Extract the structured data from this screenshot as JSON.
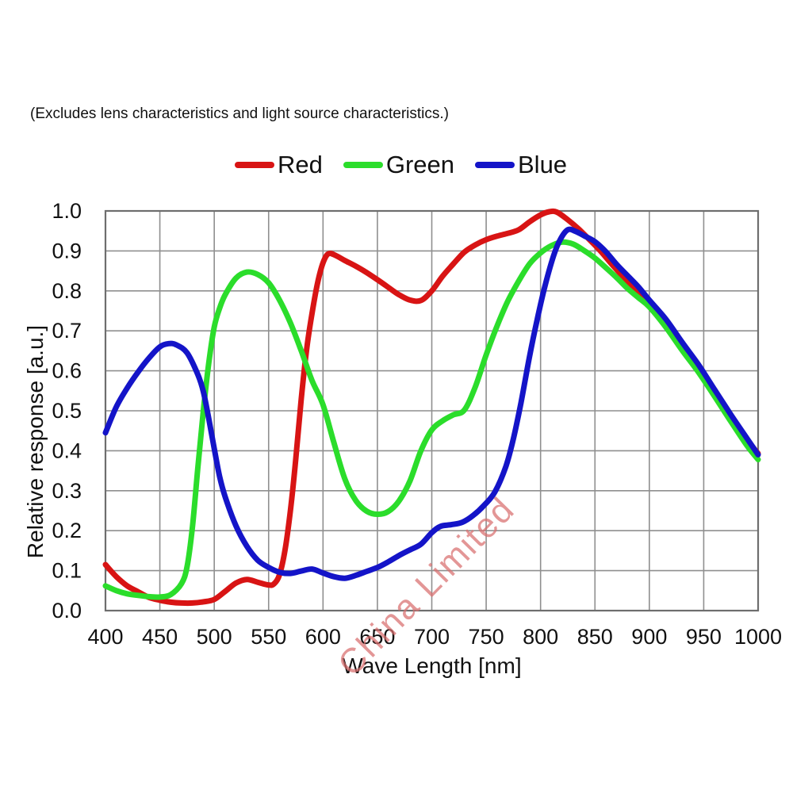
{
  "note": {
    "text": "(Excludes lens characteristics and light source characteristics.)"
  },
  "watermark": {
    "text": "China Limited",
    "color": "#d96e6e"
  },
  "style": {
    "grid_color": "#8f8f8f",
    "border_color": "#6e6e6e",
    "tick_color": "#111111"
  },
  "chart_data": {
    "type": "line",
    "title": "",
    "xlabel": "Wave Length [nm]",
    "ylabel": "Relative response [a.u.]",
    "xlim": [
      400,
      1000
    ],
    "ylim": [
      0.0,
      1.0
    ],
    "grid": true,
    "legend_position": "top-center",
    "x_ticks": [
      "400",
      "450",
      "500",
      "550",
      "600",
      "650",
      "700",
      "750",
      "800",
      "850",
      "900",
      "950",
      "1000"
    ],
    "y_ticks": [
      "0.0",
      "0.1",
      "0.2",
      "0.3",
      "0.4",
      "0.5",
      "0.6",
      "0.7",
      "0.8",
      "0.9",
      "1.0"
    ],
    "series": [
      {
        "name": "Red",
        "color": "#d81414",
        "points": [
          [
            400,
            0.115
          ],
          [
            410,
            0.085
          ],
          [
            420,
            0.062
          ],
          [
            430,
            0.047
          ],
          [
            440,
            0.033
          ],
          [
            450,
            0.026
          ],
          [
            460,
            0.021
          ],
          [
            470,
            0.019
          ],
          [
            480,
            0.019
          ],
          [
            490,
            0.022
          ],
          [
            500,
            0.028
          ],
          [
            510,
            0.048
          ],
          [
            520,
            0.069
          ],
          [
            530,
            0.078
          ],
          [
            540,
            0.071
          ],
          [
            550,
            0.064
          ],
          [
            555,
            0.067
          ],
          [
            560,
            0.09
          ],
          [
            565,
            0.15
          ],
          [
            570,
            0.25
          ],
          [
            575,
            0.38
          ],
          [
            580,
            0.53
          ],
          [
            585,
            0.655
          ],
          [
            590,
            0.745
          ],
          [
            595,
            0.82
          ],
          [
            600,
            0.87
          ],
          [
            605,
            0.893
          ],
          [
            612,
            0.888
          ],
          [
            620,
            0.876
          ],
          [
            630,
            0.862
          ],
          [
            640,
            0.846
          ],
          [
            650,
            0.828
          ],
          [
            660,
            0.809
          ],
          [
            670,
            0.79
          ],
          [
            680,
            0.777
          ],
          [
            690,
            0.776
          ],
          [
            700,
            0.8
          ],
          [
            710,
            0.837
          ],
          [
            720,
            0.868
          ],
          [
            730,
            0.897
          ],
          [
            740,
            0.915
          ],
          [
            750,
            0.928
          ],
          [
            760,
            0.937
          ],
          [
            770,
            0.944
          ],
          [
            780,
            0.953
          ],
          [
            790,
            0.973
          ],
          [
            800,
            0.99
          ],
          [
            808,
            0.998
          ],
          [
            815,
            0.997
          ],
          [
            825,
            0.978
          ],
          [
            835,
            0.955
          ],
          [
            845,
            0.928
          ],
          [
            855,
            0.9
          ],
          [
            865,
            0.868
          ],
          [
            875,
            0.838
          ],
          [
            885,
            0.808
          ],
          [
            900,
            0.773
          ],
          [
            915,
            0.728
          ],
          [
            930,
            0.669
          ],
          [
            945,
            0.613
          ],
          [
            960,
            0.55
          ],
          [
            975,
            0.487
          ],
          [
            990,
            0.427
          ],
          [
            1000,
            0.393
          ]
        ]
      },
      {
        "name": "Green",
        "color": "#2bdd2b",
        "points": [
          [
            400,
            0.062
          ],
          [
            410,
            0.05
          ],
          [
            420,
            0.042
          ],
          [
            430,
            0.038
          ],
          [
            440,
            0.035
          ],
          [
            450,
            0.034
          ],
          [
            460,
            0.04
          ],
          [
            470,
            0.068
          ],
          [
            475,
            0.11
          ],
          [
            480,
            0.21
          ],
          [
            485,
            0.36
          ],
          [
            490,
            0.5
          ],
          [
            495,
            0.62
          ],
          [
            500,
            0.71
          ],
          [
            505,
            0.757
          ],
          [
            510,
            0.79
          ],
          [
            520,
            0.832
          ],
          [
            530,
            0.847
          ],
          [
            540,
            0.841
          ],
          [
            550,
            0.82
          ],
          [
            560,
            0.777
          ],
          [
            570,
            0.72
          ],
          [
            580,
            0.65
          ],
          [
            590,
            0.575
          ],
          [
            600,
            0.515
          ],
          [
            610,
            0.42
          ],
          [
            620,
            0.33
          ],
          [
            630,
            0.276
          ],
          [
            640,
            0.249
          ],
          [
            650,
            0.241
          ],
          [
            660,
            0.248
          ],
          [
            670,
            0.275
          ],
          [
            680,
            0.325
          ],
          [
            690,
            0.4
          ],
          [
            700,
            0.452
          ],
          [
            710,
            0.475
          ],
          [
            720,
            0.49
          ],
          [
            730,
            0.502
          ],
          [
            740,
            0.56
          ],
          [
            750,
            0.64
          ],
          [
            760,
            0.712
          ],
          [
            770,
            0.775
          ],
          [
            780,
            0.825
          ],
          [
            790,
            0.868
          ],
          [
            800,
            0.895
          ],
          [
            810,
            0.913
          ],
          [
            820,
            0.922
          ],
          [
            830,
            0.917
          ],
          [
            840,
            0.901
          ],
          [
            850,
            0.882
          ],
          [
            860,
            0.858
          ],
          [
            870,
            0.833
          ],
          [
            880,
            0.806
          ],
          [
            890,
            0.783
          ],
          [
            900,
            0.76
          ],
          [
            915,
            0.71
          ],
          [
            930,
            0.652
          ],
          [
            945,
            0.597
          ],
          [
            960,
            0.536
          ],
          [
            975,
            0.473
          ],
          [
            990,
            0.412
          ],
          [
            1000,
            0.378
          ]
        ]
      },
      {
        "name": "Blue",
        "color": "#1414c8",
        "points": [
          [
            400,
            0.445
          ],
          [
            410,
            0.51
          ],
          [
            420,
            0.557
          ],
          [
            430,
            0.597
          ],
          [
            440,
            0.632
          ],
          [
            450,
            0.66
          ],
          [
            458,
            0.668
          ],
          [
            465,
            0.665
          ],
          [
            475,
            0.645
          ],
          [
            485,
            0.59
          ],
          [
            490,
            0.548
          ],
          [
            495,
            0.48
          ],
          [
            500,
            0.405
          ],
          [
            505,
            0.335
          ],
          [
            510,
            0.285
          ],
          [
            520,
            0.212
          ],
          [
            530,
            0.161
          ],
          [
            540,
            0.126
          ],
          [
            550,
            0.108
          ],
          [
            560,
            0.096
          ],
          [
            570,
            0.093
          ],
          [
            580,
            0.099
          ],
          [
            590,
            0.104
          ],
          [
            600,
            0.094
          ],
          [
            610,
            0.085
          ],
          [
            620,
            0.081
          ],
          [
            630,
            0.088
          ],
          [
            640,
            0.098
          ],
          [
            650,
            0.108
          ],
          [
            660,
            0.122
          ],
          [
            670,
            0.138
          ],
          [
            680,
            0.152
          ],
          [
            690,
            0.166
          ],
          [
            700,
            0.195
          ],
          [
            708,
            0.211
          ],
          [
            718,
            0.215
          ],
          [
            728,
            0.221
          ],
          [
            738,
            0.238
          ],
          [
            748,
            0.263
          ],
          [
            758,
            0.297
          ],
          [
            768,
            0.36
          ],
          [
            775,
            0.43
          ],
          [
            782,
            0.52
          ],
          [
            790,
            0.638
          ],
          [
            797,
            0.73
          ],
          [
            804,
            0.812
          ],
          [
            812,
            0.888
          ],
          [
            818,
            0.928
          ],
          [
            825,
            0.953
          ],
          [
            832,
            0.949
          ],
          [
            840,
            0.938
          ],
          [
            850,
            0.923
          ],
          [
            860,
            0.898
          ],
          [
            870,
            0.866
          ],
          [
            880,
            0.838
          ],
          [
            890,
            0.81
          ],
          [
            900,
            0.777
          ],
          [
            915,
            0.73
          ],
          [
            930,
            0.672
          ],
          [
            945,
            0.616
          ],
          [
            960,
            0.553
          ],
          [
            975,
            0.49
          ],
          [
            990,
            0.43
          ],
          [
            1000,
            0.39
          ]
        ]
      }
    ]
  }
}
